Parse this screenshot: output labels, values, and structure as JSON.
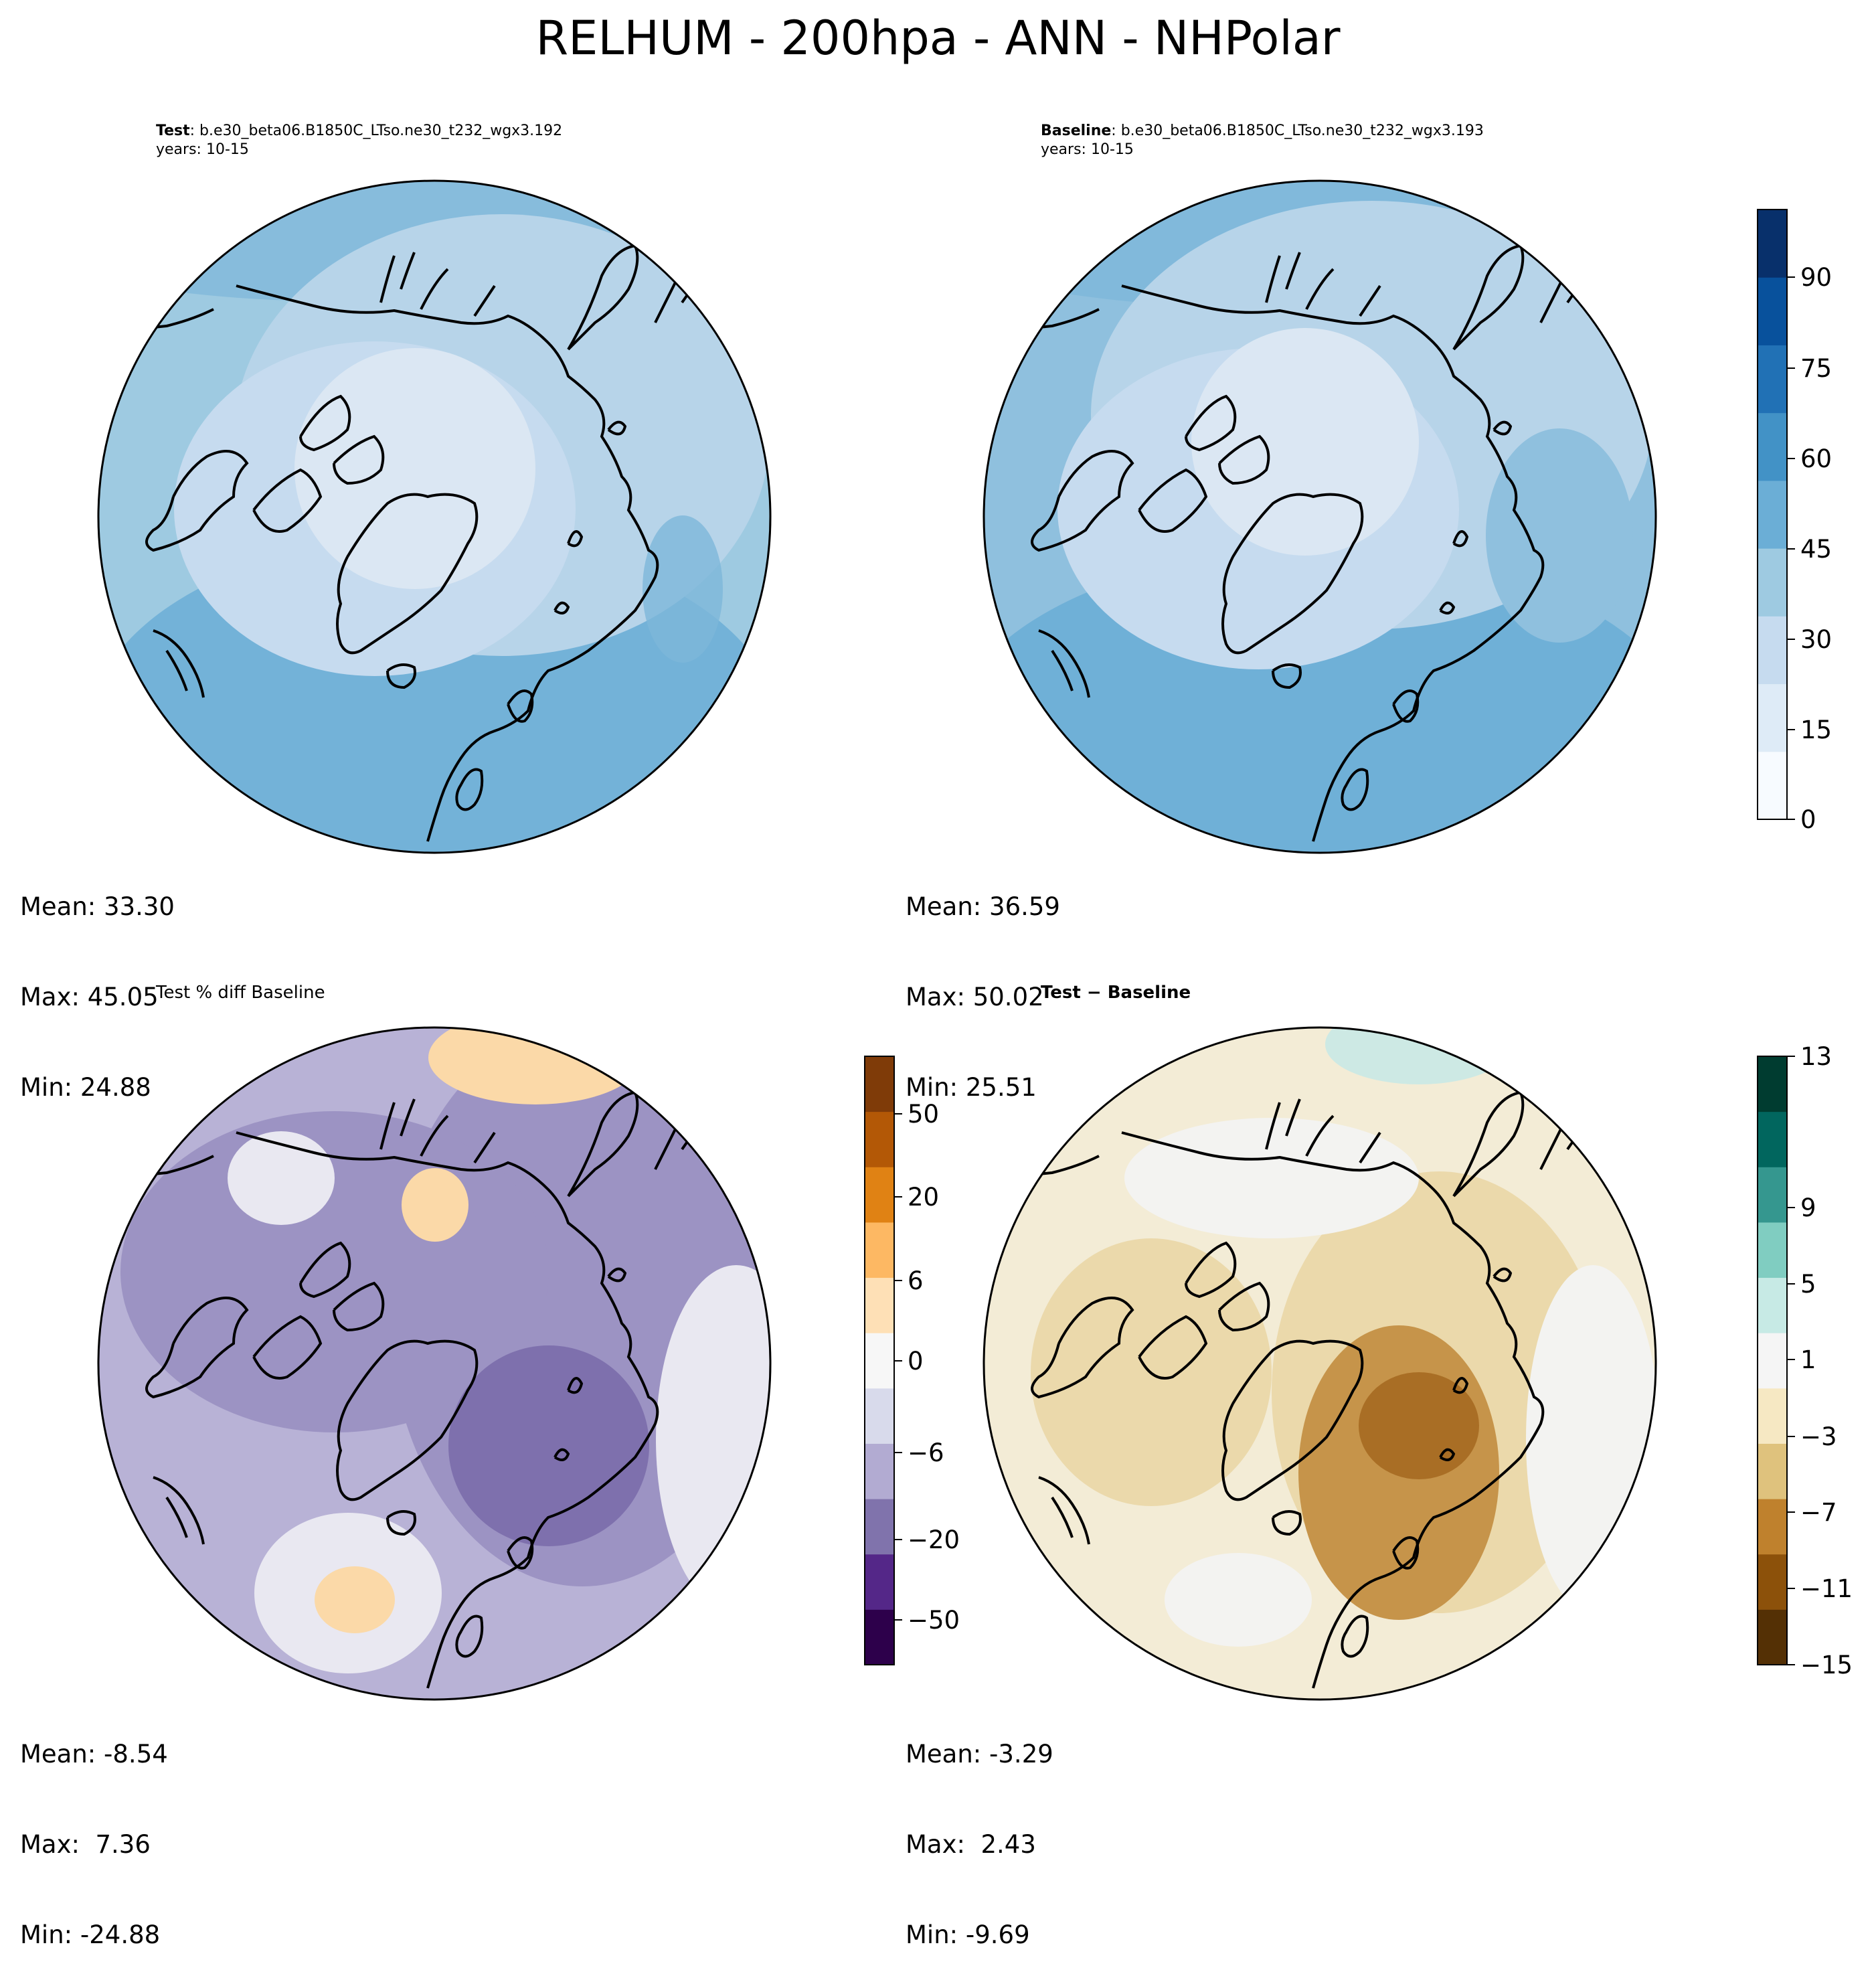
{
  "title": "RELHUM - 200hpa - ANN - NHPolar",
  "panels": {
    "test": {
      "label_bold": "Test",
      "label_rest": ": b.e30_beta06.B1850C_LTso.ne30_t232_wgx3.192",
      "years": "years: 10-15",
      "stats": {
        "mean": "Mean: 33.30",
        "max": "Max: 45.05",
        "min": "Min: 24.88"
      }
    },
    "baseline": {
      "label_bold": "Baseline",
      "label_rest": ": b.e30_beta06.B1850C_LTso.ne30_t232_wgx3.193",
      "years": "years: 10-15",
      "stats": {
        "mean": "Mean: 36.59",
        "max": "Max: 50.02",
        "min": "Min: 25.51"
      }
    },
    "pct_diff": {
      "label": "Test % diff Baseline",
      "stats": {
        "mean": "Mean: -8.54",
        "max": "Max:  7.36",
        "min": "Min: -24.88"
      }
    },
    "diff": {
      "label": "Test − Baseline",
      "stats": {
        "mean": "Mean: -3.29",
        "max": "Max:  2.43",
        "min": "Min: -9.69"
      }
    }
  },
  "colorbars": {
    "relhum": {
      "ticks": [
        "0",
        "15",
        "30",
        "45",
        "60",
        "75",
        "90"
      ],
      "colors": [
        "#f7fbff",
        "#deebf7",
        "#c6dbef",
        "#9ecae1",
        "#6baed6",
        "#4292c6",
        "#2171b5",
        "#08519c",
        "#08306b"
      ]
    },
    "pct_diff": {
      "ticks": [
        "−50",
        "−20",
        "−6",
        "0",
        "6",
        "20",
        "50"
      ],
      "colors": [
        "#2d004b",
        "#542788",
        "#8073ac",
        "#b2abd2",
        "#d8daeb",
        "#f7f7f7",
        "#fee0b6",
        "#fdb863",
        "#e08214",
        "#b35806",
        "#7f3b08"
      ]
    },
    "diff": {
      "ticks": [
        "−15",
        "−11",
        "−7",
        "−3",
        "1",
        "5",
        "9",
        "13"
      ],
      "colors": [
        "#543005",
        "#8c510a",
        "#bf812d",
        "#dfc27d",
        "#f6e8c3",
        "#f5f5f5",
        "#c7eae5",
        "#80cdc1",
        "#35978f",
        "#01665e",
        "#003c30"
      ]
    }
  },
  "map_colors": {
    "relhum_low": "#dbe7f3",
    "relhum_mid": "#b7d4e9",
    "relhum_high": "#7db6da",
    "pct_neutral": "#e9e8f1",
    "pct_purple": "#9c93c3",
    "pct_deep": "#7e70ad",
    "pct_orange": "#fbd9a8",
    "diff_neutral": "#f3f3f1",
    "diff_tan": "#ebd9ab",
    "diff_brown": "#c6944a",
    "diff_dark": "#a96e25",
    "diff_teal": "#cde9e4"
  }
}
